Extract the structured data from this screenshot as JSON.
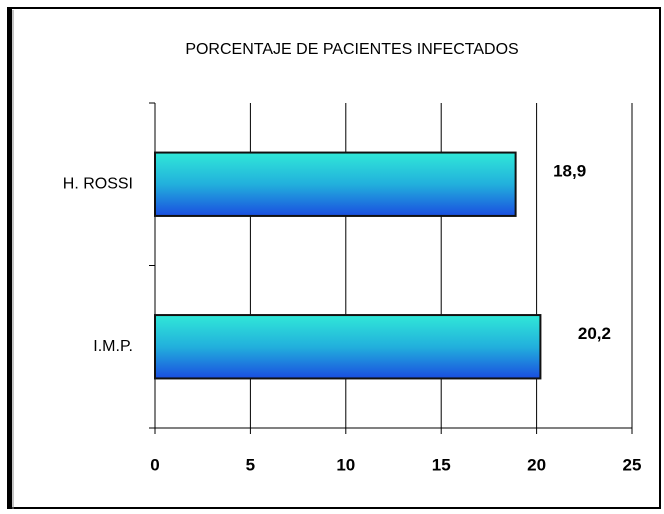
{
  "chart_data": {
    "type": "bar",
    "orientation": "horizontal",
    "title": "PORCENTAJE DE PACIENTES INFECTADOS",
    "categories": [
      "H. ROSSI",
      "I.M.P."
    ],
    "values": [
      18.9,
      20.2
    ],
    "value_labels": [
      "18,9",
      "20,2"
    ],
    "color": "#1fb8d8",
    "xlim": [
      0,
      25
    ],
    "xticks": [
      0,
      5,
      10,
      15,
      20,
      25
    ],
    "grid": true
  }
}
